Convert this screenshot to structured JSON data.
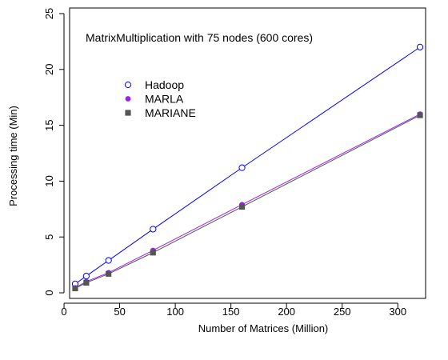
{
  "chart_data": {
    "type": "line",
    "annotation": "MatrixMultiplication with 75 nodes (600 cores)",
    "xlabel": "Number of Matrices (Million)",
    "ylabel": "Processing time (Min)",
    "xlim": [
      5,
      325
    ],
    "ylim": [
      -0.5,
      25.5
    ],
    "x_ticks": [
      0,
      50,
      100,
      150,
      200,
      250,
      300
    ],
    "y_ticks": [
      0,
      5,
      10,
      15,
      20,
      25
    ],
    "x_tick_labels": [
      "0",
      "50",
      "100",
      "150",
      "200",
      "250",
      "300"
    ],
    "y_tick_labels": [
      "0",
      "5",
      "10",
      "15",
      "20",
      "25"
    ],
    "legend_position": "upper-left",
    "series": [
      {
        "name": "Hadoop",
        "marker": "open-circle",
        "color": "#0000ff",
        "x": [
          10,
          20,
          40,
          80,
          160,
          320
        ],
        "y": [
          0.8,
          1.5,
          2.9,
          5.7,
          11.2,
          22.0
        ]
      },
      {
        "name": "MARLA",
        "marker": "filled-circle",
        "color": "#a020f0",
        "x": [
          10,
          20,
          40,
          80,
          160,
          320
        ],
        "y": [
          0.45,
          1.0,
          1.8,
          3.8,
          7.9,
          16.0
        ]
      },
      {
        "name": "MARIANE",
        "marker": "filled-square",
        "color": "#555555",
        "x": [
          10,
          20,
          40,
          80,
          160,
          320
        ],
        "y": [
          0.4,
          0.9,
          1.7,
          3.6,
          7.7,
          15.9
        ]
      }
    ]
  }
}
